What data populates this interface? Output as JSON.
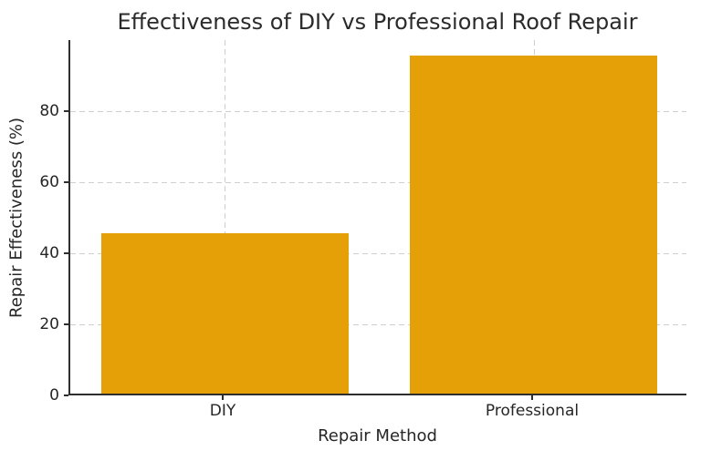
{
  "figure": {
    "background": "#ffffff"
  },
  "chart_data": {
    "type": "bar",
    "title": "Effectiveness of DIY vs Professional Roof Repair",
    "xlabel": "Repair Method",
    "ylabel": "Repair Effectiveness (%)",
    "categories": [
      "DIY",
      "Professional"
    ],
    "values": [
      45,
      95
    ],
    "ylim": [
      0,
      100
    ],
    "yticks": [
      0,
      20,
      40,
      60,
      80
    ],
    "bar_color": "#E5A008",
    "grid": true,
    "grid_style": "dashed",
    "grid_color": "#cfcfcf",
    "axis_color": "#2e2e2e",
    "text_color": "#262626",
    "legend": "none"
  }
}
